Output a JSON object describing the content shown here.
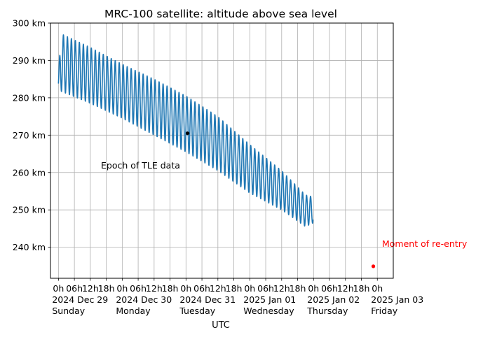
{
  "chart_data": {
    "type": "line",
    "title": "MRC-100 satellite: altitude above sea level",
    "xlabel": "UTC",
    "ylabel": "",
    "ylim": [
      231.7,
      300.0
    ],
    "xlim_hours": [
      -3.0,
      126.0
    ],
    "grid": true,
    "y_ticks": [
      {
        "value": 240,
        "label": "240 km"
      },
      {
        "value": 250,
        "label": "250 km"
      },
      {
        "value": 260,
        "label": "260 km"
      },
      {
        "value": 270,
        "label": "270 km"
      },
      {
        "value": 280,
        "label": "280 km"
      },
      {
        "value": 290,
        "label": "290 km"
      },
      {
        "value": 300,
        "label": "300 km"
      }
    ],
    "x_ticks": [
      {
        "hour": 0,
        "lines": [
          "0h",
          "2024 Dec 29",
          "Sunday"
        ]
      },
      {
        "hour": 6,
        "lines": [
          "06h"
        ]
      },
      {
        "hour": 12,
        "lines": [
          "12h"
        ]
      },
      {
        "hour": 18,
        "lines": [
          "18h"
        ]
      },
      {
        "hour": 24,
        "lines": [
          "0h",
          "2024 Dec 30",
          "Monday"
        ]
      },
      {
        "hour": 30,
        "lines": [
          "06h"
        ]
      },
      {
        "hour": 36,
        "lines": [
          "12h"
        ]
      },
      {
        "hour": 42,
        "lines": [
          "18h"
        ]
      },
      {
        "hour": 48,
        "lines": [
          "0h",
          "2024 Dec 31",
          "Tuesday"
        ]
      },
      {
        "hour": 54,
        "lines": [
          "06h"
        ]
      },
      {
        "hour": 60,
        "lines": [
          "12h"
        ]
      },
      {
        "hour": 66,
        "lines": [
          "18h"
        ]
      },
      {
        "hour": 72,
        "lines": [
          "0h",
          "2025 Jan 01",
          "Wednesday"
        ]
      },
      {
        "hour": 78,
        "lines": [
          "06h"
        ]
      },
      {
        "hour": 84,
        "lines": [
          "12h"
        ]
      },
      {
        "hour": 90,
        "lines": [
          "18h"
        ]
      },
      {
        "hour": 96,
        "lines": [
          "0h",
          "2025 Jan 02",
          "Thursday"
        ]
      },
      {
        "hour": 102,
        "lines": [
          "06h"
        ]
      },
      {
        "hour": 108,
        "lines": [
          "12h"
        ]
      },
      {
        "hour": 114,
        "lines": [
          "18h"
        ]
      },
      {
        "hour": 120,
        "lines": [
          "0h",
          "2025 Jan 03",
          "Friday"
        ]
      }
    ],
    "series": [
      {
        "color": "#1f77b4",
        "start_hour": 0.0,
        "end_hour": 95.8,
        "orbital_period_hours": 1.5,
        "upper_envelope_km": [
          [
            0.0,
            285.6
          ],
          [
            0.9,
            297.2
          ],
          [
            12.0,
            293.5
          ],
          [
            24.0,
            289.0
          ],
          [
            36.0,
            285.0
          ],
          [
            48.0,
            280.5
          ],
          [
            60.0,
            275.0
          ],
          [
            72.0,
            267.5
          ],
          [
            84.0,
            260.5
          ],
          [
            93.0,
            254.0
          ],
          [
            95.8,
            253.5
          ]
        ],
        "lower_envelope_km": [
          [
            0.0,
            282.0
          ],
          [
            12.0,
            278.5
          ],
          [
            24.0,
            274.5
          ],
          [
            36.0,
            270.0
          ],
          [
            48.0,
            265.5
          ],
          [
            60.0,
            260.5
          ],
          [
            72.0,
            254.5
          ],
          [
            84.0,
            250.0
          ],
          [
            93.0,
            245.5
          ],
          [
            95.8,
            246.5
          ]
        ]
      }
    ],
    "points": [
      {
        "hour": 48.6,
        "value": 270.5,
        "color": "#000000"
      },
      {
        "hour": 118.5,
        "value": 234.9,
        "color": "#ff0000"
      }
    ],
    "annotations": [
      {
        "text": "Epoch of TLE data",
        "color": "#000000"
      },
      {
        "text": "Moment of re-entry",
        "color": "#ff0000"
      }
    ]
  }
}
